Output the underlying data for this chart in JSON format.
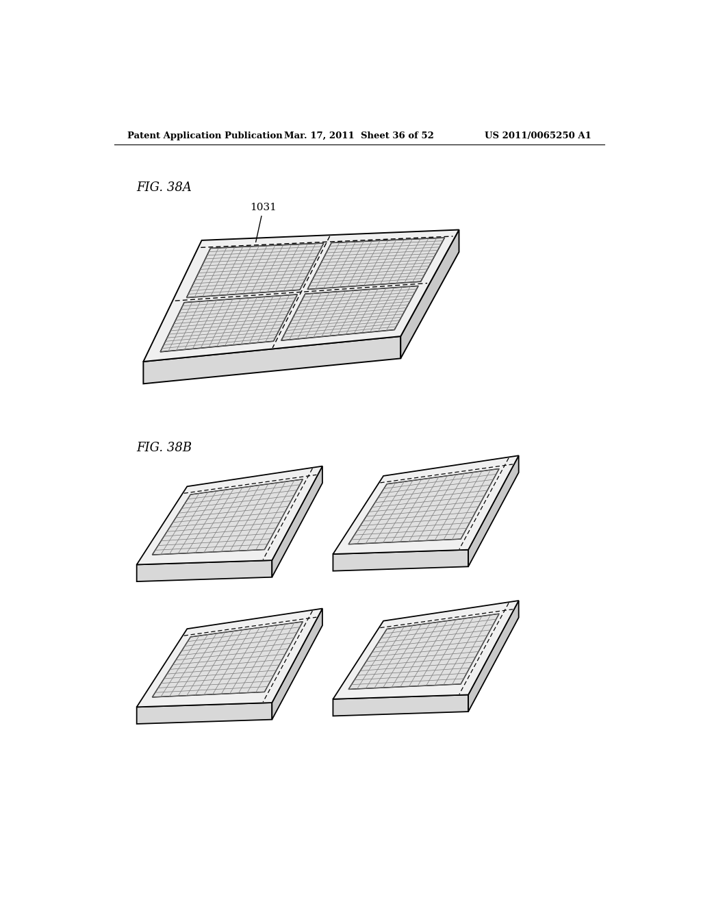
{
  "bg_color": "#ffffff",
  "header_left": "Patent Application Publication",
  "header_center": "Mar. 17, 2011  Sheet 36 of 52",
  "header_right": "US 2011/0065250 A1",
  "fig_38a_label": "FIG. 38A",
  "fig_38b_label": "FIG. 38B",
  "label_1031": "1031"
}
